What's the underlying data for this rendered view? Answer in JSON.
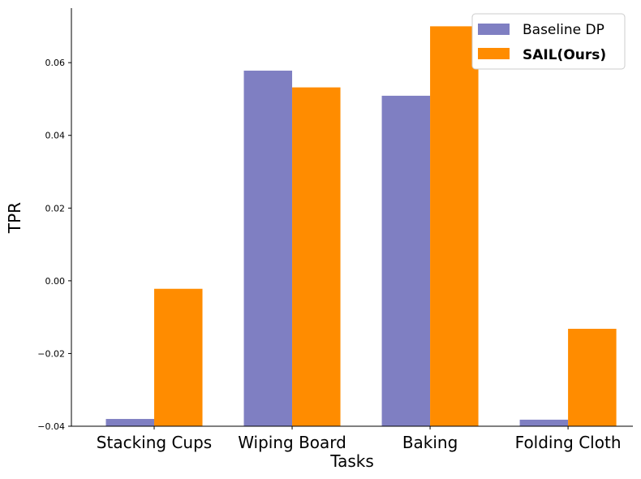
{
  "chart_data": {
    "type": "bar",
    "categories": [
      "Stacking Cups",
      "Wiping Board",
      "Baking",
      "Folding Cloth"
    ],
    "series": [
      {
        "name": "Baseline DP",
        "values": [
          -0.038,
          0.0578,
          0.0509,
          -0.0382
        ],
        "color": "#7f7fc2"
      },
      {
        "name": "SAIL(Ours)",
        "values": [
          -0.0022,
          0.0532,
          0.07,
          -0.0132
        ],
        "color": "#ff8c00",
        "bold": true
      }
    ],
    "title": "",
    "xlabel": "Tasks",
    "ylabel": "TPR",
    "ylim": [
      -0.04,
      0.075
    ],
    "yticks": [
      -0.04,
      -0.02,
      0.0,
      0.02,
      0.04,
      0.06
    ],
    "ytick_labels": [
      "−0.04",
      "−0.02",
      "0.00",
      "0.02",
      "0.04",
      "0.06"
    ],
    "legend": "top-right",
    "grid": false
  }
}
